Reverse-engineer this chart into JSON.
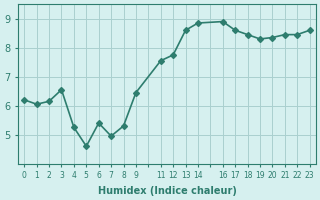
{
  "x": [
    0,
    1,
    2,
    3,
    4,
    5,
    6,
    7,
    8,
    9,
    11,
    12,
    13,
    14,
    16,
    17,
    18,
    19,
    20,
    21,
    22,
    23
  ],
  "y": [
    6.2,
    6.05,
    6.15,
    6.55,
    5.25,
    4.6,
    5.4,
    4.95,
    5.3,
    6.45,
    7.55,
    7.75,
    8.6,
    8.85,
    8.9,
    8.6,
    8.45,
    8.3,
    8.35,
    8.45,
    8.45,
    8.6
  ],
  "line_color": "#2e7d6e",
  "marker": "D",
  "marker_size": 3,
  "bg_color": "#d6f0ef",
  "grid_color": "#aacfcf",
  "xlabel": "Humidex (Indice chaleur)",
  "xlim": [
    -0.5,
    23.5
  ],
  "ylim": [
    4.0,
    9.5
  ],
  "yticks": [
    5,
    6,
    7,
    8,
    9
  ],
  "all_xticks": [
    0,
    1,
    2,
    3,
    4,
    5,
    6,
    7,
    8,
    9,
    10,
    11,
    12,
    13,
    14,
    15,
    16,
    17,
    18,
    19,
    20,
    21,
    22,
    23
  ],
  "xtick_labels": [
    "0",
    "1",
    "2",
    "3",
    "4",
    "5",
    "6",
    "7",
    "8",
    "9",
    "",
    "11",
    "12",
    "13",
    "14",
    "",
    "16",
    "17",
    "18",
    "19",
    "20",
    "21",
    "22",
    "23"
  ],
  "font_color": "#2e7d6e",
  "axis_color": "#2e7d6e",
  "linewidth": 1.2
}
